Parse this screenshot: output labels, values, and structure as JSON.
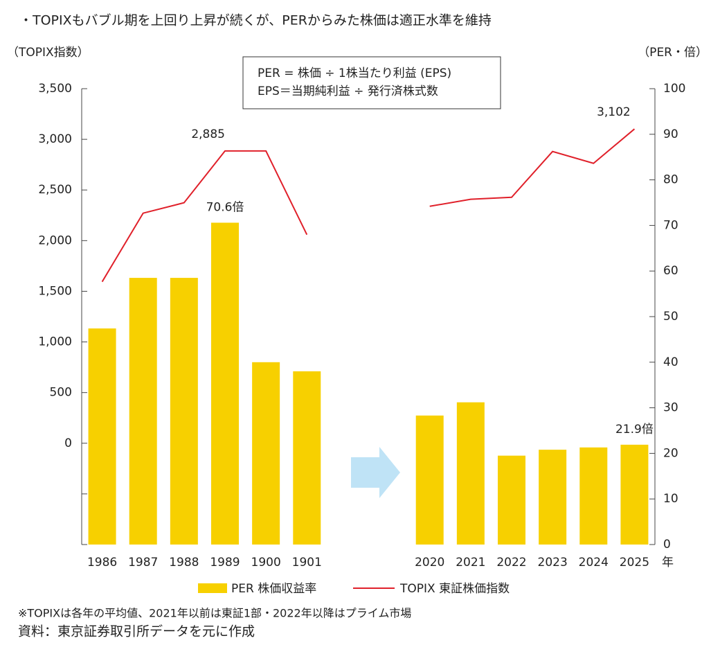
{
  "chart_data": {
    "type": "bar-line",
    "title": "・TOPIXもバブル期を上回り上昇が続くが、PERからみた株価は適正水準を維持",
    "y_label": "（TOPIX指数）",
    "y2_label": "（PER・倍）",
    "x_unit": "年",
    "annotation": [
      "PER = 株価 ÷ 1株当たり利益 (EPS)",
      "EPS＝当期純利益 ÷ 発行済株式数"
    ],
    "notes": [
      "※TOPIXは各年の平均値、2021年以前は東証1部・2022年以降はプライム市場",
      "資料：東京証券取引所データを元に作成"
    ],
    "categories": [
      "1986",
      "1987",
      "1988",
      "1989",
      "1900",
      "1901",
      null,
      null,
      "2020",
      "2021",
      "2022",
      "2023",
      "2024",
      "2025"
    ],
    "series": [
      {
        "name": "PER 株価収益率",
        "type": "bar",
        "axis": "y2",
        "color": "#f7d000",
        "values": [
          47.4,
          58.5,
          58.5,
          70.6,
          40.0,
          38.0,
          null,
          null,
          28.3,
          31.2,
          19.5,
          20.8,
          21.3,
          21.9
        ],
        "value_labels": [
          null,
          null,
          null,
          "70.6倍",
          null,
          null,
          null,
          null,
          null,
          null,
          null,
          null,
          null,
          "21.9倍"
        ]
      },
      {
        "name": "TOPIX 東証株価指数",
        "type": "line",
        "color": "#e0202a",
        "values": [
          1594,
          2271,
          2374,
          2885,
          2885,
          2059,
          null,
          null,
          2339,
          2408,
          2428,
          2880,
          2763,
          3102
        ],
        "value_labels": [
          null,
          null,
          null,
          "2,885",
          null,
          null,
          null,
          null,
          null,
          null,
          null,
          null,
          null,
          "3,102"
        ]
      }
    ],
    "ylim": [
      -1000,
      3500
    ],
    "yticks": [
      0,
      500,
      {
        "value": 1000,
        "label": "1,000"
      },
      {
        "value": 1500,
        "label": "1,500"
      },
      {
        "value": 2000,
        "label": "2,000"
      },
      {
        "value": 2500,
        "label": "2,500"
      },
      {
        "value": 3000,
        "label": "3,000"
      },
      {
        "value": 3500,
        "label": "3,500"
      }
    ],
    "y_unlabeled_ticks": [
      -1000,
      -500
    ],
    "y2lim": [
      0,
      100
    ],
    "y2ticks": [
      0,
      10,
      20,
      30,
      40,
      50,
      60,
      70,
      80,
      90,
      100
    ]
  }
}
